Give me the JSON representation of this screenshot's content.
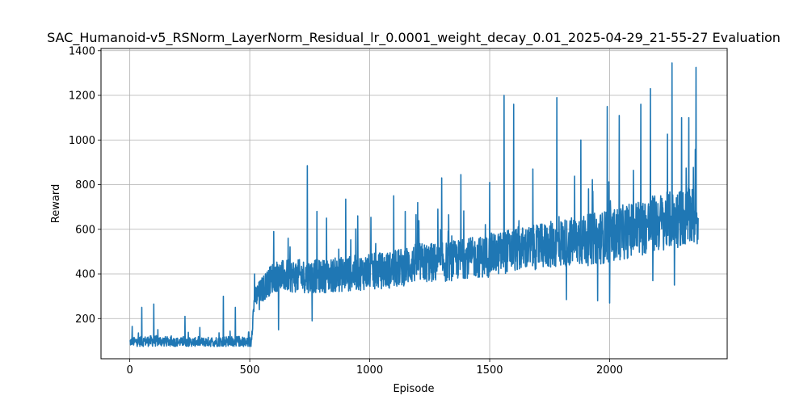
{
  "chart_data": {
    "type": "line",
    "title": "SAC_Humanoid-v5_RSNorm_LayerNorm_Residual_lr_0.0001_weight_decay_0.01_2025-04-29_21-55-27 Evaluation",
    "xlabel": "Episode",
    "ylabel": "Reward",
    "xlim": [
      -120,
      2490
    ],
    "ylim": [
      20,
      1410
    ],
    "xticks": [
      0,
      500,
      1000,
      1500,
      2000
    ],
    "yticks": [
      200,
      400,
      600,
      800,
      1000,
      1200,
      1400
    ],
    "grid": true,
    "series": [
      {
        "color": "#1f77b4",
        "episodes_total": 2370,
        "anchors": [
          [
            0,
            95,
            20
          ],
          [
            100,
            100,
            25
          ],
          [
            200,
            95,
            20
          ],
          [
            300,
            95,
            20
          ],
          [
            400,
            98,
            25
          ],
          [
            505,
            95,
            25
          ],
          [
            520,
            290,
            50
          ],
          [
            600,
            390,
            70
          ],
          [
            700,
            390,
            75
          ],
          [
            800,
            390,
            75
          ],
          [
            900,
            400,
            80
          ],
          [
            1000,
            410,
            80
          ],
          [
            1100,
            420,
            85
          ],
          [
            1200,
            450,
            90
          ],
          [
            1300,
            450,
            90
          ],
          [
            1400,
            470,
            90
          ],
          [
            1500,
            480,
            95
          ],
          [
            1600,
            510,
            100
          ],
          [
            1700,
            520,
            100
          ],
          [
            1800,
            540,
            110
          ],
          [
            1900,
            550,
            115
          ],
          [
            2000,
            570,
            120
          ],
          [
            2100,
            600,
            125
          ],
          [
            2200,
            630,
            130
          ],
          [
            2300,
            650,
            130
          ],
          [
            2370,
            660,
            135
          ]
        ],
        "peaks": [
          [
            10,
            165
          ],
          [
            50,
            250
          ],
          [
            100,
            265
          ],
          [
            230,
            210
          ],
          [
            390,
            300
          ],
          [
            440,
            250
          ],
          [
            520,
            400
          ],
          [
            600,
            590
          ],
          [
            660,
            560
          ],
          [
            740,
            885
          ],
          [
            780,
            680
          ],
          [
            820,
            650
          ],
          [
            900,
            735
          ],
          [
            950,
            660
          ],
          [
            1100,
            750
          ],
          [
            1200,
            720
          ],
          [
            1300,
            830
          ],
          [
            1380,
            845
          ],
          [
            1500,
            810
          ],
          [
            1560,
            1200
          ],
          [
            1600,
            1160
          ],
          [
            1680,
            870
          ],
          [
            1780,
            1190
          ],
          [
            1880,
            1000
          ],
          [
            1990,
            1150
          ],
          [
            2040,
            1110
          ],
          [
            2130,
            1160
          ],
          [
            2170,
            1230
          ],
          [
            2260,
            1345
          ],
          [
            2300,
            1100
          ],
          [
            2330,
            1100
          ],
          [
            2360,
            1325
          ]
        ],
        "troughs": [
          [
            540,
            240
          ],
          [
            620,
            150
          ],
          [
            760,
            190
          ],
          [
            1820,
            285
          ],
          [
            1950,
            280
          ],
          [
            2000,
            270
          ],
          [
            2180,
            370
          ],
          [
            2270,
            350
          ]
        ]
      }
    ]
  }
}
